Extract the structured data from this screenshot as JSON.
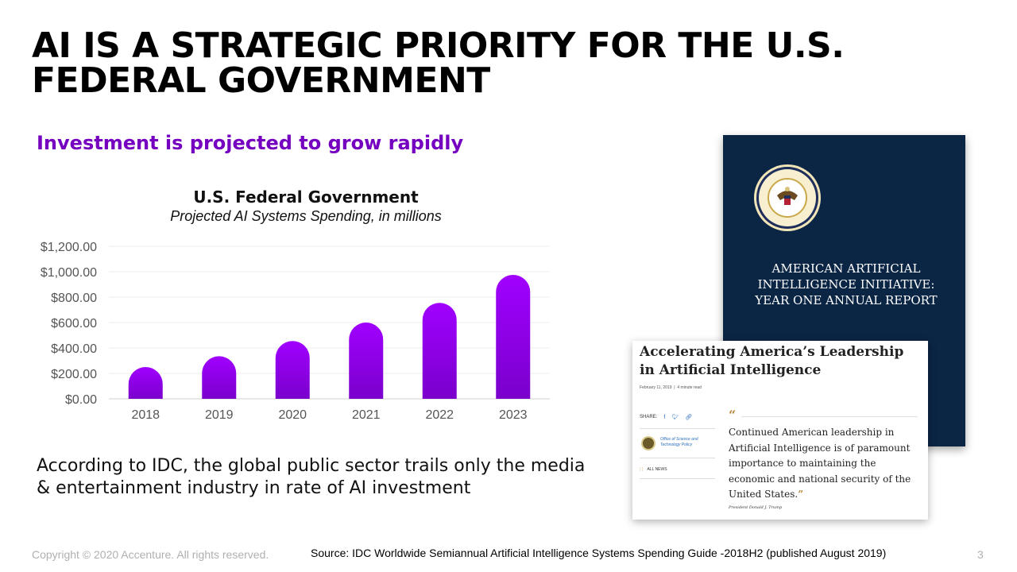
{
  "slide": {
    "title": "AI IS A STRATEGIC PRIORITY FOR THE U.S. FEDERAL GOVERNMENT",
    "subtitle": "Investment is projected to grow rapidly",
    "caption": "According to IDC, the global public sector trails only the media & entertainment industry in rate of AI investment",
    "copyright": "Copyright © 2020 Accenture. All rights reserved.",
    "source": "Source:  IDC Worldwide Semiannual Artificial Intelligence Systems Spending Guide -2018H2 (published August 2019)",
    "page_number": "3",
    "accent_color": "#7500c0"
  },
  "report_cover": {
    "seal_icon": "presidential-seal-icon",
    "title": "AMERICAN ARTIFICIAL INTELLIGENCE INITIATIVE: YEAR ONE ANNUAL REPORT",
    "background_color": "#0b2545"
  },
  "article": {
    "title": "Accelerating America’s Leadership in Artificial Intelligence",
    "date": "February 11, 2019",
    "read_time": "4 minute read",
    "share_label": "SHARE:",
    "office": "Office of Science and Technology Policy",
    "news_link": "ALL NEWS",
    "quote": "Continued American leadership in Artificial Intelligence is of paramount importance to maintaining the economic and national security of the United States.",
    "attribution": "President Donald J. Trump"
  },
  "chart_data": {
    "type": "bar",
    "title": "U.S. Federal Government",
    "subtitle": "Projected AI Systems Spending, in millions",
    "categories": [
      "2018",
      "2019",
      "2020",
      "2021",
      "2022",
      "2023"
    ],
    "values": [
      250,
      335,
      455,
      600,
      755,
      975
    ],
    "ylim": [
      0,
      1200
    ],
    "yticks": [
      "$0.00",
      "$200.00",
      "$400.00",
      "$600.00",
      "$800.00",
      "$1,000.00",
      "$1,200.00"
    ],
    "ytick_values": [
      0,
      200,
      400,
      600,
      800,
      1000,
      1200
    ],
    "grid": true,
    "bar_gradient": [
      "#a000ff",
      "#7a00cc"
    ]
  }
}
